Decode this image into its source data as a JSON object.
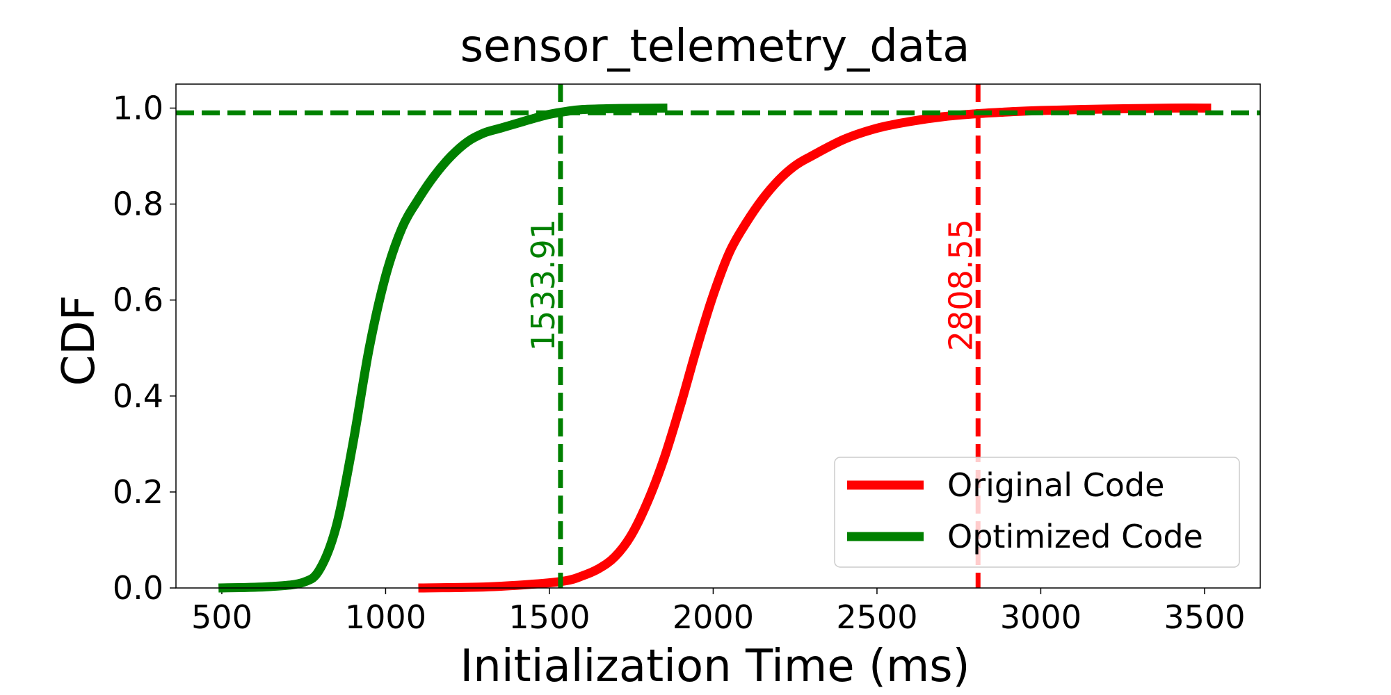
{
  "chart_data": {
    "type": "line",
    "title": "sensor_telemetry_data",
    "xlabel": "Initialization Time (ms)",
    "ylabel": "CDF",
    "xlim": [
      360,
      3670
    ],
    "ylim": [
      0,
      1.05
    ],
    "xticks": [
      500,
      1000,
      1500,
      2000,
      2500,
      3000,
      3500
    ],
    "yticks": [
      0.0,
      0.2,
      0.4,
      0.6,
      0.8,
      1.0
    ],
    "ytick_labels": [
      "0.0",
      "0.2",
      "0.4",
      "0.6",
      "0.8",
      "1.0"
    ],
    "grid": false,
    "legend_position": "lower-right",
    "series": [
      {
        "name": "Original Code",
        "color": "#ff0000",
        "x": [
          1100,
          1300,
          1450,
          1550,
          1600,
          1650,
          1700,
          1750,
          1800,
          1850,
          1900,
          1950,
          2000,
          2050,
          2100,
          2150,
          2200,
          2250,
          2300,
          2400,
          2500,
          2600,
          2700,
          2800,
          2900,
          3000,
          3200,
          3400,
          3520
        ],
        "y": [
          0.0,
          0.002,
          0.008,
          0.015,
          0.025,
          0.04,
          0.065,
          0.11,
          0.18,
          0.27,
          0.38,
          0.5,
          0.61,
          0.7,
          0.76,
          0.81,
          0.85,
          0.88,
          0.9,
          0.935,
          0.958,
          0.972,
          0.982,
          0.988,
          0.992,
          0.995,
          0.998,
          1.0,
          1.0
        ]
      },
      {
        "name": "Optimized Code",
        "color": "#008000",
        "x": [
          490,
          650,
          750,
          800,
          850,
          900,
          950,
          1000,
          1050,
          1100,
          1150,
          1200,
          1250,
          1300,
          1350,
          1400,
          1450,
          1500,
          1550,
          1600,
          1700,
          1860
        ],
        "y": [
          0.0,
          0.003,
          0.012,
          0.04,
          0.13,
          0.3,
          0.5,
          0.65,
          0.75,
          0.81,
          0.86,
          0.9,
          0.93,
          0.948,
          0.958,
          0.968,
          0.978,
          0.987,
          0.993,
          0.997,
          0.999,
          1.0
        ]
      }
    ],
    "reference_lines": [
      {
        "orientation": "vertical",
        "x": 1533.91,
        "label": "1533.91",
        "color": "#008000"
      },
      {
        "orientation": "vertical",
        "x": 2808.55,
        "label": "2808.55",
        "color": "#ff0000"
      },
      {
        "orientation": "horizontal",
        "y": 0.99,
        "color": "#008000"
      }
    ]
  }
}
